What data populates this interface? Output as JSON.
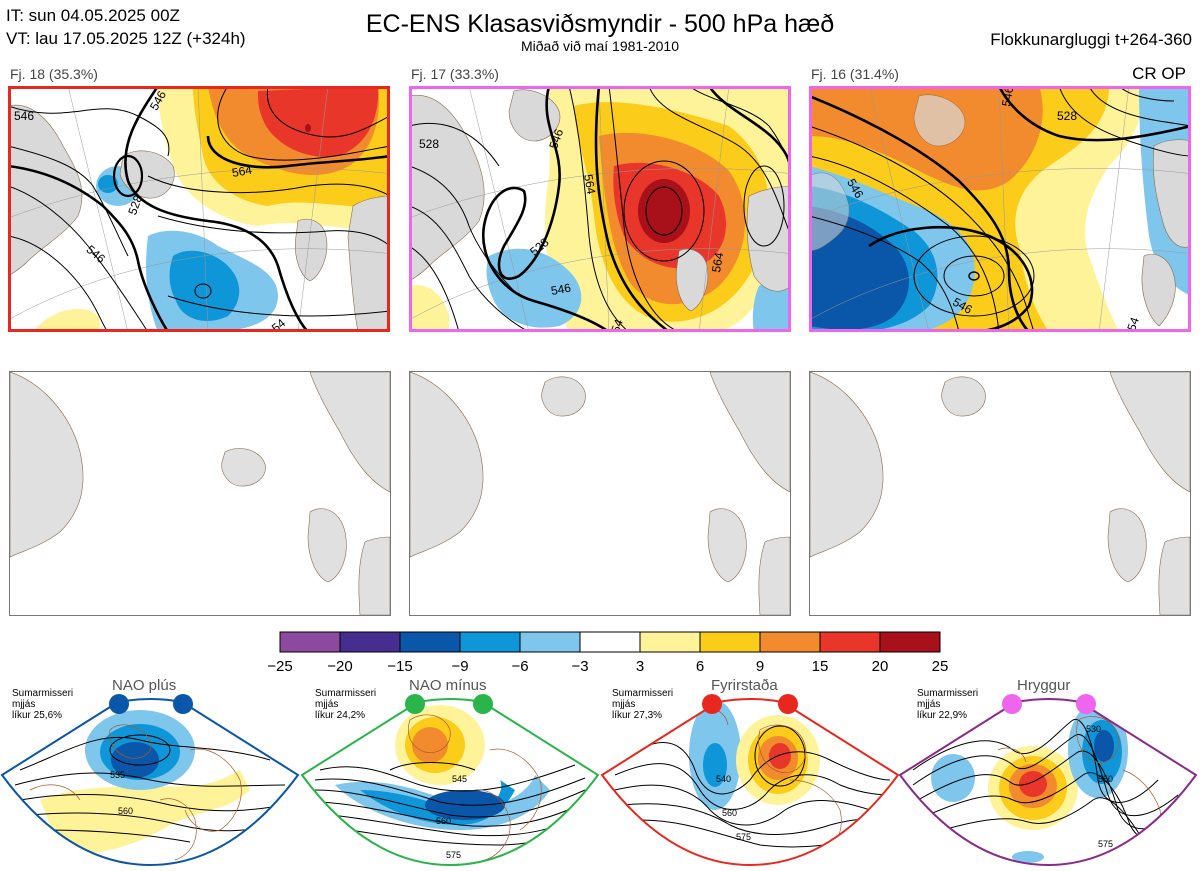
{
  "header": {
    "it_line": "IT: sun 04.05.2025 00Z",
    "vt_line": "VT: lau 17.05.2025 12Z  (+324h)",
    "title": "EC-ENS Klasasviðsmyndir - 500 hPa hæð",
    "subtitle": "Miðað við maí 1981-2010",
    "window": "Flokkunargluggi t+264-360",
    "crop_label": "CR OP"
  },
  "panels": [
    {
      "label": "Fj. 18 (35.3%)",
      "frame_color": "#e8281f",
      "contours": [
        "546",
        "528",
        "546",
        "564",
        "546",
        "54"
      ]
    },
    {
      "label": "Fj. 17 (33.3%)",
      "frame_color": "#ee66ee",
      "contours": [
        "528",
        "546",
        "528",
        "546",
        "564",
        "564",
        "54"
      ]
    },
    {
      "label": "Fj. 16 (31.4%)",
      "frame_color": "#ee66ee",
      "contours": [
        "546",
        "546",
        "528",
        "546",
        "54"
      ]
    }
  ],
  "colorbar": {
    "colors": [
      "#8c4a9e",
      "#452e8f",
      "#0a56a8",
      "#0e96d8",
      "#7ec6ec",
      "#ffffff",
      "#fff39a",
      "#fccc1a",
      "#f28a2e",
      "#e8362a",
      "#a8101a"
    ],
    "ticks": [
      "−25",
      "−20",
      "−15",
      "−9",
      "−6",
      "−3",
      "3",
      "6",
      "9",
      "15",
      "20",
      "25"
    ]
  },
  "regimes": [
    {
      "name": "NAO plús",
      "info": [
        "Sumarmisseri",
        "mjjás",
        "líkur 25,6%"
      ],
      "frame": "#0a56a8",
      "dots": [
        "#0a56a8",
        "#0a56a8"
      ],
      "contours": [
        "535",
        "560"
      ]
    },
    {
      "name": "NAO mínus",
      "info": [
        "Sumarmisseri",
        "mjjás",
        "líkur 24,2%"
      ],
      "frame": "#2ab44a",
      "dots": [
        "#2ab44a",
        "#2ab44a"
      ],
      "contours": [
        "545",
        "560",
        "575"
      ]
    },
    {
      "name": "Fyrirstaða",
      "info": [
        "Sumarmisseri",
        "mjjás",
        "líkur 27,3%"
      ],
      "frame": "#e8281f",
      "dots": [
        "#e8281f",
        "#e8281f"
      ],
      "contours": [
        "540",
        "560",
        "575"
      ]
    },
    {
      "name": "Hryggur",
      "info": [
        "Sumarmisseri",
        "mjjás",
        "líkur 22,9%"
      ],
      "frame": "#8a2a8a",
      "dots": [
        "#ee66ee",
        "#ee66ee"
      ],
      "contours": [
        "530",
        "550",
        "575"
      ]
    }
  ]
}
